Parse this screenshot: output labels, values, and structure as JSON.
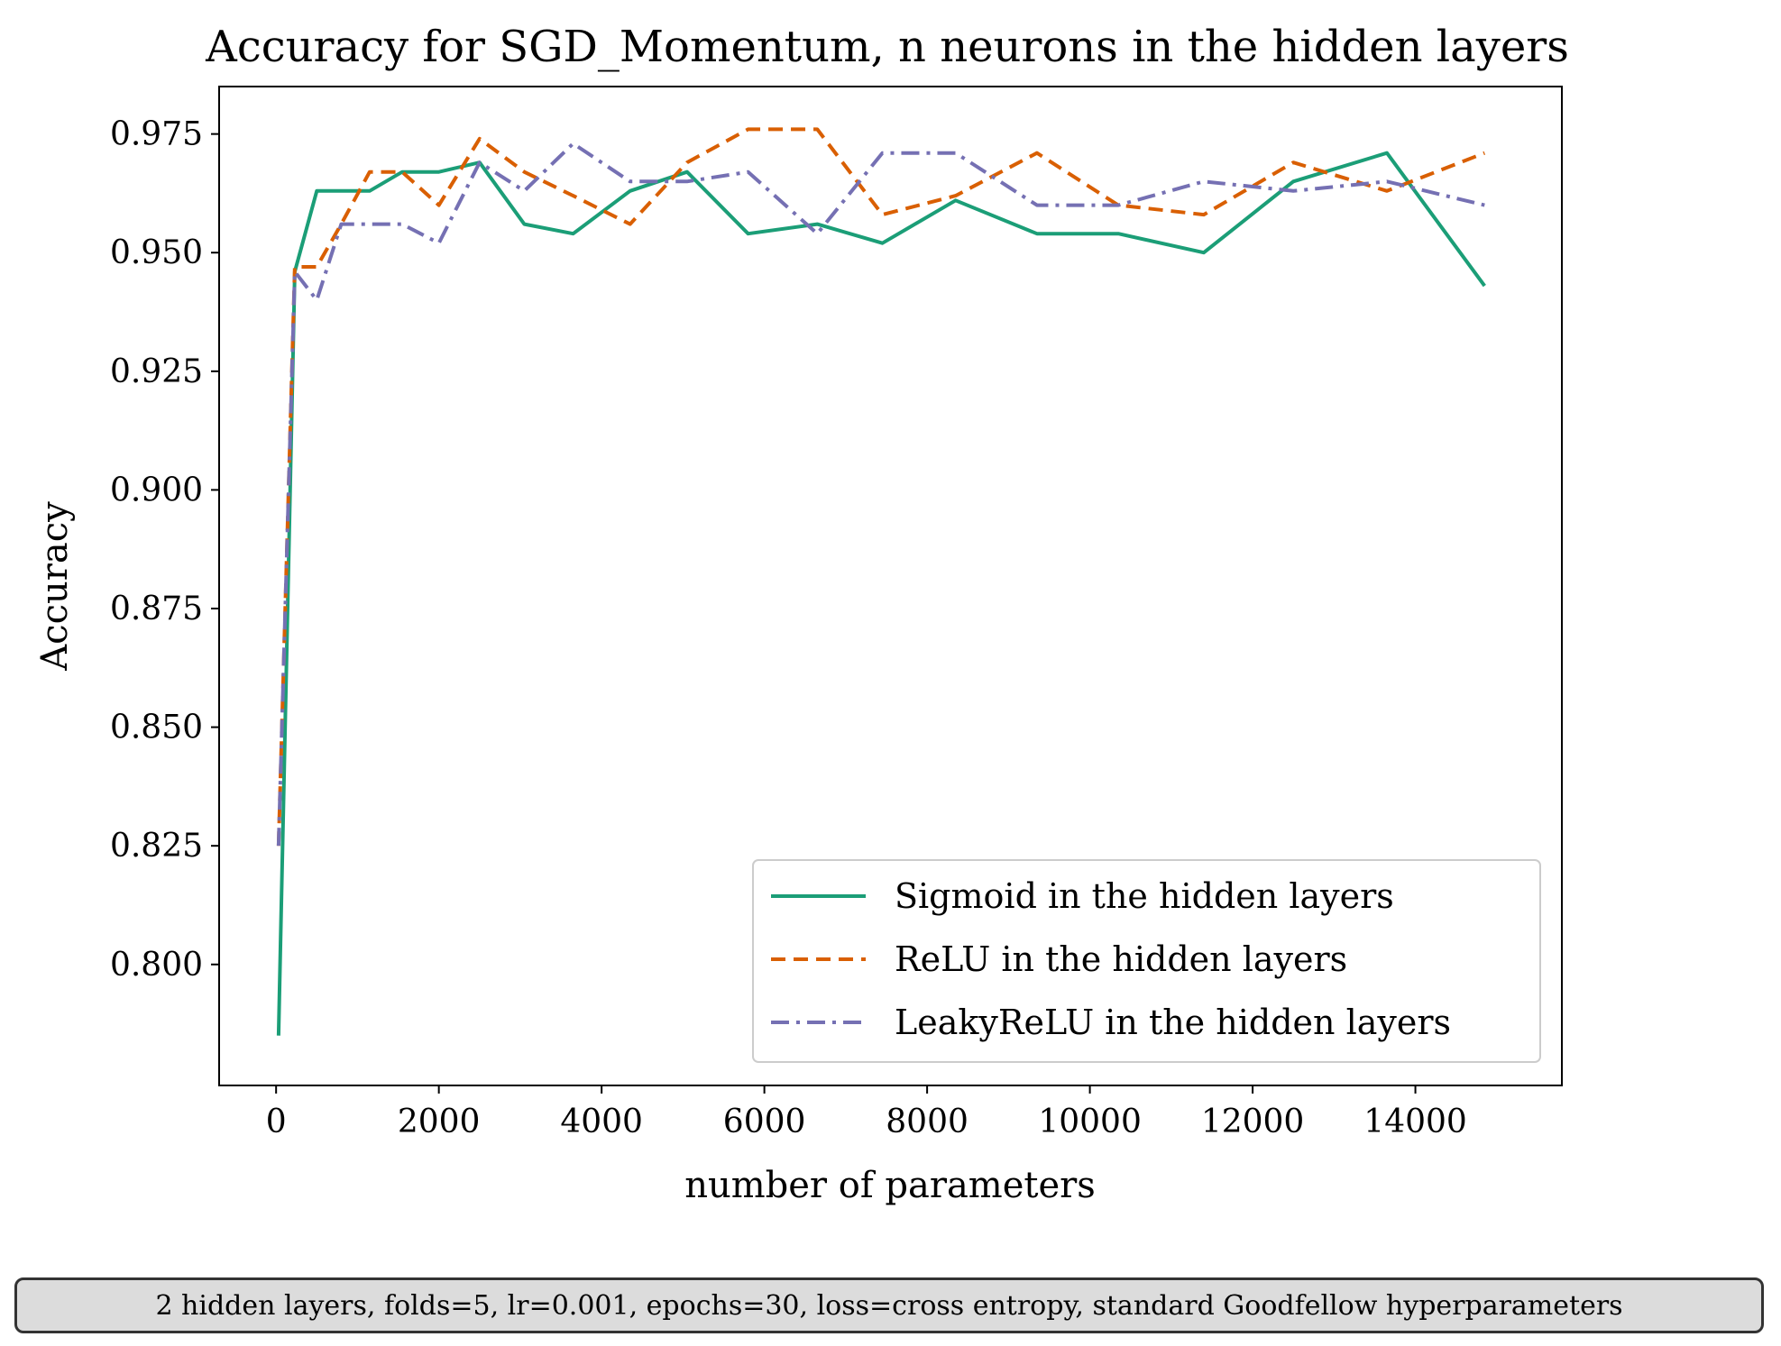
{
  "chart_data": {
    "type": "line",
    "title": "Accuracy for SGD_Momentum, n neurons in the hidden layers",
    "xlabel": "number of parameters",
    "ylabel": "Accuracy",
    "xlim": [
      -700,
      15800
    ],
    "ylim": [
      0.7745,
      0.985
    ],
    "xticks": [
      0,
      2000,
      4000,
      6000,
      8000,
      10000,
      12000,
      14000
    ],
    "xtick_labels": [
      "0",
      "2000",
      "4000",
      "6000",
      "8000",
      "10000",
      "12000",
      "14000"
    ],
    "yticks": [
      0.8,
      0.825,
      0.85,
      0.875,
      0.9,
      0.925,
      0.95,
      0.975
    ],
    "ytick_labels": [
      "0.800",
      "0.825",
      "0.850",
      "0.875",
      "0.900",
      "0.925",
      "0.950",
      "0.975"
    ],
    "grid": false,
    "legend_position": "lower-right",
    "series": [
      {
        "name": "Sigmoid in the hidden layers",
        "color": "#1b9e77",
        "dash": "solid",
        "x": [
          30,
          230,
          500,
          800,
          1150,
          1550,
          2000,
          2500,
          3050,
          3650,
          4350,
          5050,
          5800,
          6650,
          7450,
          8350,
          9350,
          10350,
          11400,
          12500,
          13650,
          14850
        ],
        "y": [
          0.785,
          0.946,
          0.963,
          0.963,
          0.963,
          0.967,
          0.967,
          0.969,
          0.956,
          0.954,
          0.963,
          0.967,
          0.954,
          0.956,
          0.952,
          0.961,
          0.954,
          0.954,
          0.95,
          0.965,
          0.971,
          0.943
        ]
      },
      {
        "name": "ReLU in the hidden layers",
        "color": "#d95f02",
        "dash": "dashed",
        "x": [
          30,
          230,
          500,
          800,
          1150,
          1550,
          2000,
          2500,
          3050,
          3650,
          4350,
          5050,
          5800,
          6650,
          7450,
          8350,
          9350,
          10350,
          11400,
          12500,
          13650,
          14850
        ],
        "y": [
          0.825,
          0.947,
          0.947,
          0.956,
          0.967,
          0.967,
          0.96,
          0.974,
          0.967,
          0.962,
          0.956,
          0.969,
          0.976,
          0.976,
          0.958,
          0.962,
          0.971,
          0.96,
          0.958,
          0.969,
          0.963,
          0.971
        ]
      },
      {
        "name": "LeakyReLU in the hidden layers",
        "color": "#7570b3",
        "dash": "dashdot",
        "x": [
          30,
          230,
          500,
          800,
          1150,
          1550,
          2000,
          2500,
          3050,
          3650,
          4350,
          5050,
          5800,
          6650,
          7450,
          8350,
          9350,
          10350,
          11400,
          12500,
          13650,
          14850
        ],
        "y": [
          0.825,
          0.946,
          0.94,
          0.956,
          0.956,
          0.956,
          0.952,
          0.969,
          0.963,
          0.973,
          0.965,
          0.965,
          0.967,
          0.954,
          0.971,
          0.971,
          0.96,
          0.96,
          0.965,
          0.963,
          0.965,
          0.96
        ]
      }
    ]
  },
  "footnote": "2 hidden layers, folds=5, lr=0.001, epochs=30, loss=cross entropy, standard Goodfellow hyperparameters"
}
